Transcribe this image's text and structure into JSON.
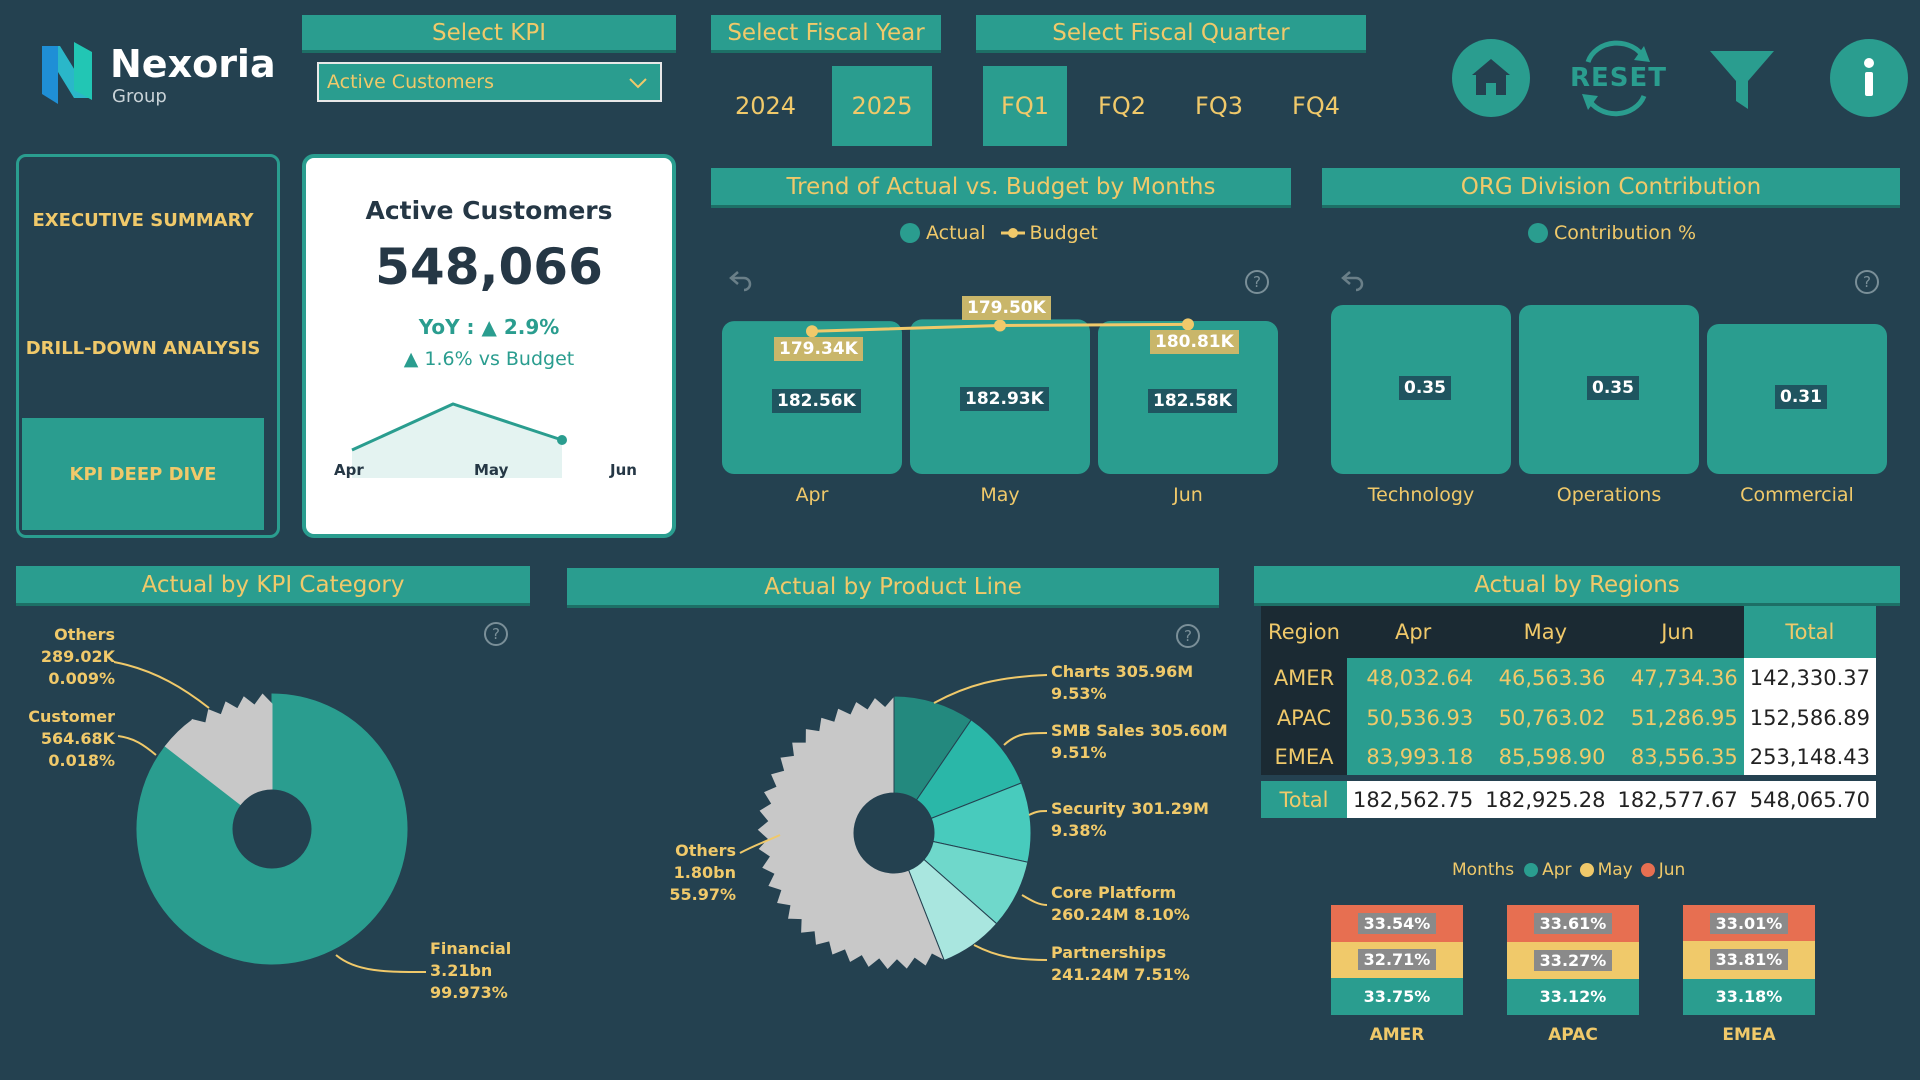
{
  "brand": {
    "name": "Nexoria",
    "sub": "Group"
  },
  "slicers": {
    "kpi": {
      "title": "Select KPI",
      "value": "Active Customers"
    },
    "year": {
      "title": "Select Fiscal Year",
      "options": [
        "2024",
        "2025"
      ],
      "selected": "2025"
    },
    "quarter": {
      "title": "Select Fiscal Quarter",
      "options": [
        "FQ1",
        "FQ2",
        "FQ3",
        "FQ4"
      ],
      "selected": "FQ1"
    }
  },
  "toolbar": {
    "reset": "RESET"
  },
  "nav": [
    {
      "label": "EXECUTIVE SUMMARY",
      "active": false
    },
    {
      "label": "DRILL-DOWN ANALYSIS",
      "active": false
    },
    {
      "label": "KPI DEEP DIVE",
      "active": true
    }
  ],
  "card": {
    "title": "Active Customers",
    "value": "548,066",
    "yoy": "YoY : ▲ 2.9%",
    "vs_budget": "▲ 1.6% vs Budget",
    "spark_labels": [
      "Apr",
      "May",
      "Jun"
    ]
  },
  "colors": {
    "accent": "#2a9d8f",
    "gold": "#f0c96a",
    "bg": "#244150",
    "grey": "#c8c8c8",
    "red": "#e76f51"
  },
  "trend": {
    "title": "Trend of Actual vs. Budget by Months",
    "legend": {
      "actual": "Actual",
      "budget": "Budget"
    },
    "chart_data": {
      "type": "bar",
      "categories": [
        "Apr",
        "May",
        "Jun"
      ],
      "series": [
        {
          "name": "Actual",
          "values": [
            182.56,
            182.93,
            182.58
          ],
          "labels": [
            "182.56K",
            "182.93K",
            "182.58K"
          ]
        },
        {
          "name": "Budget",
          "values": [
            179.34,
            179.5,
            180.81
          ],
          "labels": [
            "179.34K",
            "179.50K",
            "180.81K"
          ]
        }
      ]
    }
  },
  "org": {
    "title": "ORG Division Contribution",
    "legend": "Contribution %",
    "chart_data": {
      "type": "bar",
      "categories": [
        "Technology",
        "Operations",
        "Commercial"
      ],
      "values": [
        0.35,
        0.35,
        0.31
      ],
      "labels": [
        "0.35",
        "0.35",
        "0.31"
      ]
    }
  },
  "kpi_cat": {
    "title": "Actual by KPI Category",
    "chart_data": {
      "type": "pie",
      "labels": [
        "Financial",
        "Customer",
        "Others"
      ],
      "values": [
        99.973,
        0.018,
        0.009
      ],
      "value_labels": [
        "3.21bn",
        "564.68K",
        "289.02K"
      ],
      "pct_labels": [
        "99.973%",
        "0.018%",
        "0.009%"
      ]
    }
  },
  "product": {
    "title": "Actual by Product Line",
    "chart_data": {
      "type": "pie",
      "labels": [
        "Charts",
        "SMB Sales",
        "Security",
        "Core Platform",
        "Partnerships",
        "Others"
      ],
      "values": [
        9.53,
        9.51,
        9.38,
        8.1,
        7.51,
        55.97
      ],
      "callouts": [
        "Charts 305.96M",
        "SMB Sales 305.60M",
        "Security 301.29M",
        "Core Platform",
        "Partnerships",
        "Others 1.80bn"
      ],
      "callouts2": [
        "9.53%",
        "9.51%",
        "9.38%",
        "260.24M 8.10%",
        "241.24M 7.51%",
        "55.97%"
      ]
    }
  },
  "regions": {
    "title": "Actual by Regions",
    "headers": [
      "Region",
      "Apr",
      "May",
      "Jun",
      "Total"
    ],
    "rows": [
      [
        "AMER",
        "48,032.64",
        "46,563.36",
        "47,734.36",
        "142,330.37"
      ],
      [
        "APAC",
        "50,536.93",
        "50,763.02",
        "51,286.95",
        "152,586.89"
      ],
      [
        "EMEA",
        "83,993.18",
        "85,598.90",
        "83,556.35",
        "253,148.43"
      ]
    ],
    "total": [
      "Total",
      "182,562.75",
      "182,925.28",
      "182,577.67",
      "548,065.70"
    ]
  },
  "stack": {
    "legend_title": "Months",
    "legend": [
      "Apr",
      "May",
      "Jun"
    ],
    "chart_data": {
      "type": "bar",
      "stacked": true,
      "categories": [
        "AMER",
        "APAC",
        "EMEA"
      ],
      "series": [
        {
          "name": "Apr",
          "values": [
            33.75,
            33.12,
            33.18
          ],
          "labels": [
            "33.75%",
            "33.12%",
            "33.18%"
          ]
        },
        {
          "name": "May",
          "values": [
            32.71,
            33.27,
            33.81
          ],
          "labels": [
            "32.71%",
            "33.27%",
            "33.81%"
          ]
        },
        {
          "name": "Jun",
          "values": [
            33.54,
            33.61,
            33.01
          ],
          "labels": [
            "33.54%",
            "33.61%",
            "33.01%"
          ]
        }
      ]
    }
  }
}
